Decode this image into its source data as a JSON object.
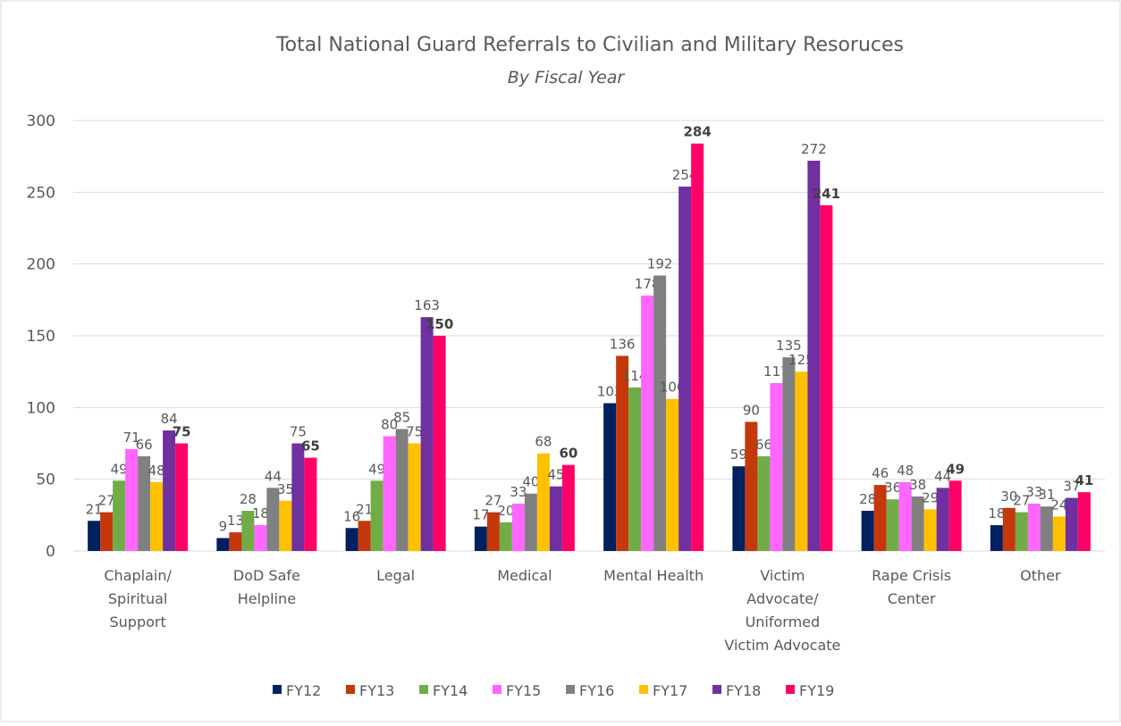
{
  "chart_data": {
    "type": "bar",
    "title": "Total National Guard Referrals to Civilian and Military Resoruces",
    "subtitle": "By Fiscal Year",
    "categories": [
      [
        "Chaplain/",
        "Spiritual",
        "Support"
      ],
      [
        "DoD Safe",
        "Helpline"
      ],
      [
        "Legal"
      ],
      [
        "Medical"
      ],
      [
        "Mental Health"
      ],
      [
        "Victim",
        "Advocate/",
        "Uniformed",
        "Victim Advocate"
      ],
      [
        "Rape Crisis",
        "Center"
      ],
      [
        "Other"
      ]
    ],
    "series": [
      {
        "name": "FY12",
        "color": "#002060",
        "values": [
          21,
          9,
          16,
          17,
          103,
          59,
          28,
          18
        ]
      },
      {
        "name": "FY13",
        "color": "#c4380c",
        "values": [
          27,
          13,
          21,
          27,
          136,
          90,
          46,
          30
        ]
      },
      {
        "name": "FY14",
        "color": "#70ad47",
        "values": [
          49,
          28,
          49,
          20,
          114,
          66,
          36,
          27
        ]
      },
      {
        "name": "FY15",
        "color": "#ff66ff",
        "values": [
          71,
          18,
          80,
          33,
          178,
          117,
          48,
          33
        ]
      },
      {
        "name": "FY16",
        "color": "#808080",
        "values": [
          66,
          44,
          85,
          40,
          192,
          135,
          38,
          31
        ]
      },
      {
        "name": "FY17",
        "color": "#ffc000",
        "values": [
          48,
          35,
          75,
          68,
          106,
          125,
          29,
          24
        ]
      },
      {
        "name": "FY18",
        "color": "#7030a0",
        "values": [
          84,
          75,
          163,
          45,
          254,
          272,
          44,
          37
        ]
      },
      {
        "name": "FY19",
        "color": "#ff0066",
        "values": [
          75,
          65,
          150,
          60,
          284,
          241,
          49,
          41
        ]
      }
    ],
    "ylim": [
      0,
      300
    ],
    "yticks": [
      0,
      50,
      100,
      150,
      200,
      250,
      300
    ],
    "grid": true,
    "legend": "bottom"
  }
}
